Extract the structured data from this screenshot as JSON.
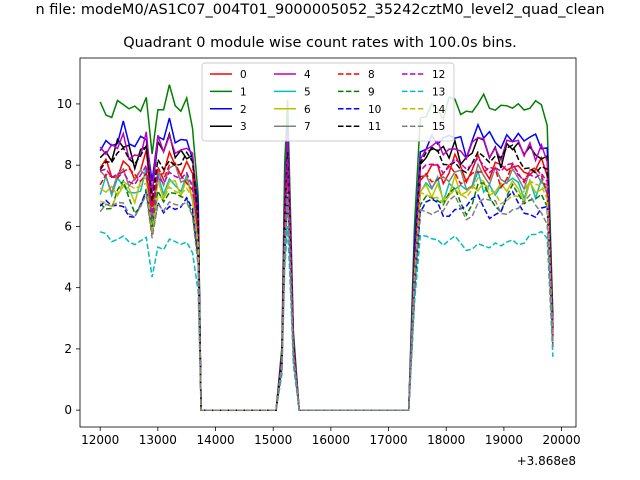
{
  "header": {
    "suptitle": "n file: modeM0/AS1C07_004T01_9000005052_35242cztM0_level2_quad_clean",
    "title": "Quadrant 0 module wise count rates with 100.0s bins."
  },
  "chart_data": {
    "type": "line",
    "title": "Quadrant 0 module wise count rates with 100.0s bins.",
    "xlabel": "",
    "ylabel": "",
    "x_offset_label": "+3.868e8",
    "xlim": [
      11650,
      20250
    ],
    "ylim": [
      -0.55,
      11.5
    ],
    "xticks": [
      12000,
      13000,
      14000,
      15000,
      16000,
      17000,
      18000,
      19000,
      20000
    ],
    "yticks": [
      0,
      2,
      4,
      6,
      8,
      10
    ],
    "grid": false,
    "legend_position": "top-center",
    "legend_columns": 4,
    "profile_x": [
      12000,
      12100,
      12200,
      12300,
      12400,
      12500,
      12600,
      12700,
      12800,
      12900,
      13000,
      13100,
      13200,
      13300,
      13400,
      13500,
      13600,
      13700,
      13750,
      15050,
      15150,
      15200,
      15250,
      15300,
      15350,
      15450,
      17350,
      17450,
      17550,
      17650,
      17750,
      17850,
      17950,
      18050,
      18150,
      18250,
      18350,
      18450,
      18550,
      18650,
      18750,
      18850,
      18950,
      19050,
      19150,
      19250,
      19350,
      19450,
      19550,
      19650,
      19750,
      19850
    ],
    "profile": [
      0.95,
      0.96,
      0.94,
      0.97,
      0.99,
      0.95,
      0.93,
      0.96,
      1.0,
      0.8,
      0.98,
      0.96,
      1.0,
      0.97,
      0.95,
      0.97,
      0.92,
      0.7,
      0,
      0,
      0.2,
      0.75,
      1.0,
      0.65,
      0.25,
      0,
      0,
      0.55,
      0.93,
      0.95,
      0.96,
      0.97,
      0.94,
      0.96,
      0.98,
      0.95,
      0.93,
      0.96,
      1.0,
      0.98,
      0.95,
      0.96,
      0.94,
      0.97,
      0.99,
      0.96,
      0.95,
      0.97,
      0.95,
      0.96,
      0.93,
      0.3
    ],
    "series": [
      {
        "name": "0",
        "color": "#ff0000",
        "dash": "solid",
        "level": 8.2
      },
      {
        "name": "1",
        "color": "#008000",
        "dash": "solid",
        "level": 10.3
      },
      {
        "name": "2",
        "color": "#0000ff",
        "dash": "solid",
        "level": 9.2
      },
      {
        "name": "3",
        "color": "#000000",
        "dash": "solid",
        "level": 8.8
      },
      {
        "name": "4",
        "color": "#bf00bf",
        "dash": "solid",
        "level": 8.9
      },
      {
        "name": "5",
        "color": "#00bfbf",
        "dash": "solid",
        "level": 7.6
      },
      {
        "name": "6",
        "color": "#bfbf00",
        "dash": "solid",
        "level": 7.5
      },
      {
        "name": "7",
        "color": "#808080",
        "dash": "solid",
        "level": 7.9
      },
      {
        "name": "8",
        "color": "#ff0000",
        "dash": "dashed",
        "level": 8.0
      },
      {
        "name": "9",
        "color": "#008000",
        "dash": "dashed",
        "level": 7.2
      },
      {
        "name": "10",
        "color": "#0000ff",
        "dash": "dashed",
        "level": 6.9
      },
      {
        "name": "11",
        "color": "#000000",
        "dash": "dashed",
        "level": 8.5
      },
      {
        "name": "12",
        "color": "#bf00bf",
        "dash": "dashed",
        "level": 8.1
      },
      {
        "name": "13",
        "color": "#00bfbf",
        "dash": "dashed",
        "level": 5.8
      },
      {
        "name": "14",
        "color": "#bfbf00",
        "dash": "dashed",
        "level": 7.4
      },
      {
        "name": "15",
        "color": "#808080",
        "dash": "dashed",
        "level": 6.9
      }
    ]
  }
}
